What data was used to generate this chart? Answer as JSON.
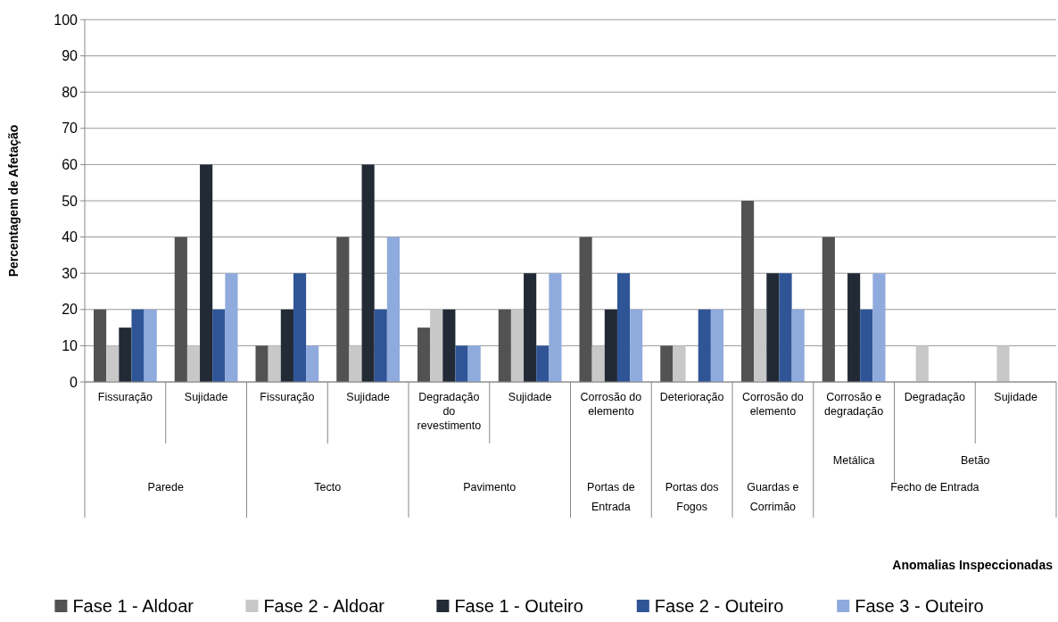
{
  "chart_data": {
    "type": "bar",
    "ylabel": "Percentagem de Afetação",
    "categories": [
      "Fissuração",
      "Sujidade",
      "Fissuração",
      "Sujidade",
      "Degradação do revestimento",
      "Sujidade",
      "Corrosão do elemento",
      "Deterioração",
      "Corrosão do elemento",
      "Corrosão e degradação",
      "Degradação",
      "Sujidade"
    ],
    "annotations": [
      "Parede",
      "Tecto",
      "Pavimento",
      "Portas de Entrada",
      "Portas dos Fogos",
      "Guardas e Corrimão",
      "Fecho de Entrada",
      "Metálica",
      "Betão",
      "Anomalias Inspeccionadas"
    ],
    "series": [
      {
        "name": "Fase 1 - Aldoar",
        "color": "#525252",
        "values": [
          20,
          40,
          10,
          40,
          15,
          20,
          40,
          10,
          50,
          40,
          null,
          null
        ]
      },
      {
        "name": "Fase 2 - Aldoar",
        "color": "#c8c8c8",
        "values": [
          10,
          10,
          10,
          10,
          20,
          20,
          10,
          10,
          20,
          null,
          10,
          10
        ]
      },
      {
        "name": "Fase 1 - Outeiro",
        "color": "#222a35",
        "values": [
          15,
          60,
          20,
          60,
          20,
          30,
          20,
          null,
          30,
          30,
          null,
          null
        ]
      },
      {
        "name": "Fase 2 - Outeiro",
        "color": "#2f5597",
        "values": [
          20,
          20,
          30,
          20,
          10,
          10,
          30,
          20,
          30,
          20,
          null,
          null
        ]
      },
      {
        "name": "Fase 3 - Outeiro",
        "color": "#8faadc",
        "values": [
          20,
          30,
          10,
          40,
          10,
          30,
          20,
          20,
          20,
          30,
          null,
          null
        ]
      }
    ],
    "ylim": [
      0,
      100
    ],
    "yticks": [
      0,
      10,
      20,
      30,
      40,
      50,
      60,
      70,
      80,
      90,
      100
    ],
    "grid": "y",
    "legend": "bottom"
  }
}
